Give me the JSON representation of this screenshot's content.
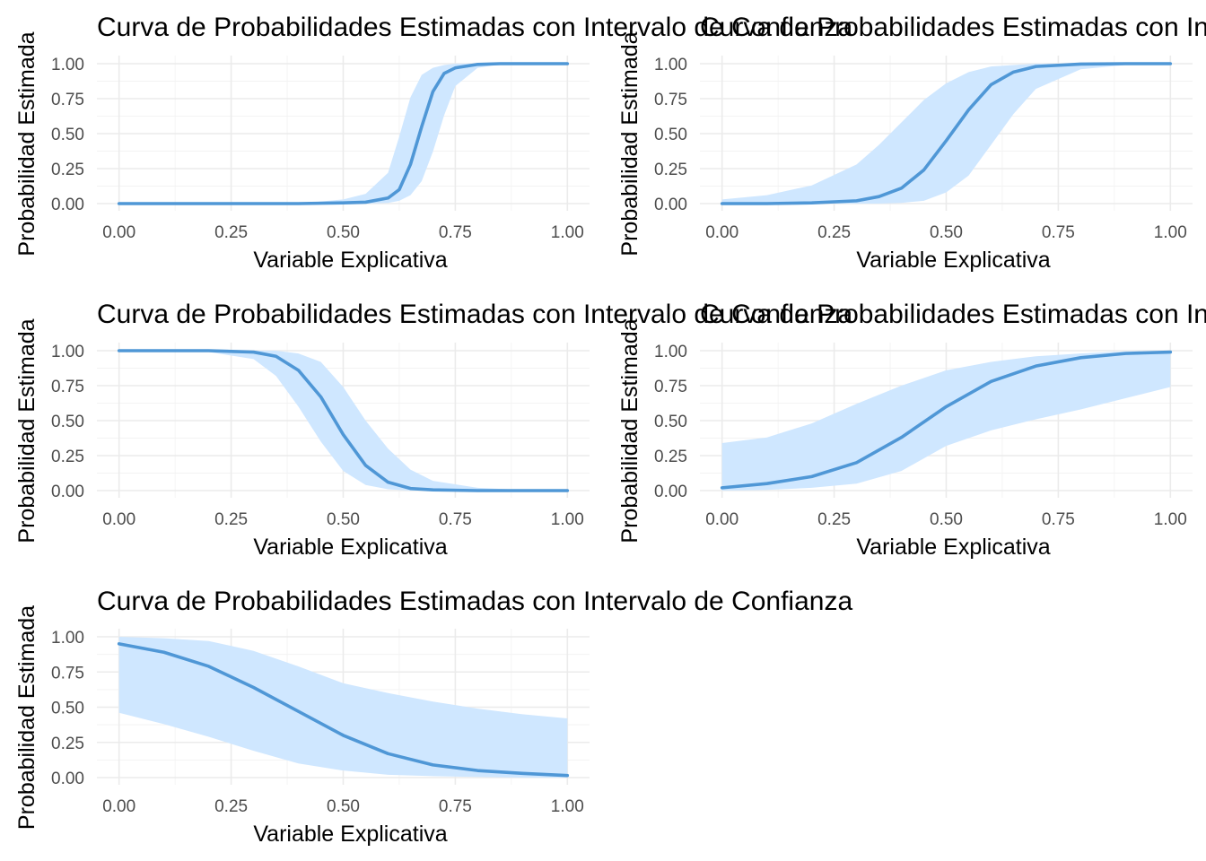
{
  "colors": {
    "line": "#4f97d6",
    "band": "#cfe7ff",
    "grid": "#ebebeb"
  },
  "chart_data": [
    {
      "type": "line",
      "title": "Curva de Probabilidades Estimadas con Intervalo de Confianza",
      "xlabel": "Variable Explicativa",
      "ylabel": "Probabilidad Estimada",
      "xlim": [
        0,
        1
      ],
      "ylim": [
        0,
        1
      ],
      "x_ticks": [
        "0.00",
        "0.25",
        "0.50",
        "0.75",
        "1.00"
      ],
      "y_ticks": [
        "0.00",
        "0.25",
        "0.50",
        "0.75",
        "1.00"
      ],
      "grid": true,
      "x": [
        0.0,
        0.4,
        0.5,
        0.55,
        0.6,
        0.625,
        0.65,
        0.675,
        0.7,
        0.725,
        0.75,
        0.8,
        0.85,
        1.0
      ],
      "y": [
        0.0,
        0.0,
        0.005,
        0.01,
        0.04,
        0.1,
        0.28,
        0.55,
        0.8,
        0.93,
        0.97,
        0.995,
        1.0,
        1.0
      ],
      "lower": [
        0.0,
        0.0,
        0.0,
        0.0,
        0.005,
        0.02,
        0.06,
        0.16,
        0.37,
        0.63,
        0.84,
        0.97,
        0.995,
        1.0
      ],
      "upper": [
        0.0,
        0.0,
        0.03,
        0.07,
        0.22,
        0.48,
        0.76,
        0.92,
        0.97,
        0.99,
        1.0,
        1.0,
        1.0,
        1.0
      ]
    },
    {
      "type": "line",
      "title": "Curva de Probabilidades Estimadas con Intervalo de Confianza",
      "xlabel": "Variable Explicativa",
      "ylabel": "Probabilidad Estimada",
      "xlim": [
        0,
        1
      ],
      "ylim": [
        0,
        1
      ],
      "x_ticks": [
        "0.00",
        "0.25",
        "0.50",
        "0.75",
        "1.00"
      ],
      "y_ticks": [
        "0.00",
        "0.25",
        "0.50",
        "0.75",
        "1.00"
      ],
      "grid": true,
      "x": [
        0.0,
        0.1,
        0.2,
        0.3,
        0.35,
        0.4,
        0.45,
        0.5,
        0.55,
        0.6,
        0.65,
        0.7,
        0.8,
        0.9,
        1.0
      ],
      "y": [
        0.0,
        0.0,
        0.005,
        0.02,
        0.05,
        0.11,
        0.24,
        0.45,
        0.67,
        0.85,
        0.94,
        0.98,
        0.997,
        1.0,
        1.0
      ],
      "lower": [
        0.0,
        0.0,
        0.0,
        0.0,
        0.0,
        0.005,
        0.02,
        0.08,
        0.2,
        0.42,
        0.64,
        0.82,
        0.96,
        0.99,
        1.0
      ],
      "upper": [
        0.03,
        0.06,
        0.13,
        0.28,
        0.42,
        0.58,
        0.74,
        0.86,
        0.94,
        0.98,
        0.99,
        1.0,
        1.0,
        1.0,
        1.0
      ]
    },
    {
      "type": "line",
      "title": "Curva de Probabilidades Estimadas con Intervalo de Confianza",
      "xlabel": "Variable Explicativa",
      "ylabel": "Probabilidad Estimada",
      "xlim": [
        0,
        1
      ],
      "ylim": [
        0,
        1
      ],
      "x_ticks": [
        "0.00",
        "0.25",
        "0.50",
        "0.75",
        "1.00"
      ],
      "y_ticks": [
        "0.00",
        "0.25",
        "0.50",
        "0.75",
        "1.00"
      ],
      "grid": true,
      "x": [
        0.0,
        0.2,
        0.3,
        0.35,
        0.4,
        0.45,
        0.5,
        0.55,
        0.6,
        0.65,
        0.7,
        0.8,
        0.9,
        1.0
      ],
      "y": [
        1.0,
        1.0,
        0.99,
        0.96,
        0.86,
        0.67,
        0.4,
        0.18,
        0.06,
        0.015,
        0.005,
        0.0,
        0.0,
        0.0
      ],
      "lower": [
        1.0,
        0.99,
        0.94,
        0.82,
        0.6,
        0.35,
        0.14,
        0.04,
        0.01,
        0.0,
        0.0,
        0.0,
        0.0,
        0.0
      ],
      "upper": [
        1.0,
        1.0,
        1.0,
        1.0,
        0.98,
        0.92,
        0.74,
        0.5,
        0.3,
        0.15,
        0.07,
        0.02,
        0.005,
        0.0
      ]
    },
    {
      "type": "line",
      "title": "Curva de Probabilidades Estimadas con Intervalo de Confianza",
      "xlabel": "Variable Explicativa",
      "ylabel": "Probabilidad Estimada",
      "xlim": [
        0,
        1
      ],
      "ylim": [
        0,
        1
      ],
      "x_ticks": [
        "0.00",
        "0.25",
        "0.50",
        "0.75",
        "1.00"
      ],
      "y_ticks": [
        "0.00",
        "0.25",
        "0.50",
        "0.75",
        "1.00"
      ],
      "grid": true,
      "x": [
        0.0,
        0.1,
        0.2,
        0.3,
        0.4,
        0.5,
        0.6,
        0.7,
        0.8,
        0.9,
        1.0
      ],
      "y": [
        0.02,
        0.05,
        0.1,
        0.2,
        0.38,
        0.6,
        0.78,
        0.89,
        0.95,
        0.98,
        0.99
      ],
      "lower": [
        0.0,
        0.005,
        0.02,
        0.05,
        0.14,
        0.32,
        0.43,
        0.51,
        0.58,
        0.66,
        0.74
      ],
      "upper": [
        0.34,
        0.38,
        0.48,
        0.62,
        0.75,
        0.86,
        0.92,
        0.96,
        0.98,
        0.995,
        1.0
      ]
    },
    {
      "type": "line",
      "title": "Curva de Probabilidades Estimadas con Intervalo de Confianza",
      "xlabel": "Variable Explicativa",
      "ylabel": "Probabilidad Estimada",
      "xlim": [
        0,
        1
      ],
      "ylim": [
        0,
        1
      ],
      "x_ticks": [
        "0.00",
        "0.25",
        "0.50",
        "0.75",
        "1.00"
      ],
      "y_ticks": [
        "0.00",
        "0.25",
        "0.50",
        "0.75",
        "1.00"
      ],
      "grid": true,
      "x": [
        0.0,
        0.1,
        0.2,
        0.3,
        0.4,
        0.5,
        0.6,
        0.7,
        0.8,
        0.9,
        1.0
      ],
      "y": [
        0.95,
        0.89,
        0.79,
        0.64,
        0.47,
        0.3,
        0.17,
        0.09,
        0.05,
        0.03,
        0.015
      ],
      "lower": [
        0.46,
        0.38,
        0.29,
        0.19,
        0.1,
        0.05,
        0.02,
        0.01,
        0.005,
        0.0,
        0.0
      ],
      "upper": [
        1.0,
        0.99,
        0.97,
        0.9,
        0.79,
        0.67,
        0.6,
        0.54,
        0.49,
        0.45,
        0.42
      ]
    }
  ]
}
